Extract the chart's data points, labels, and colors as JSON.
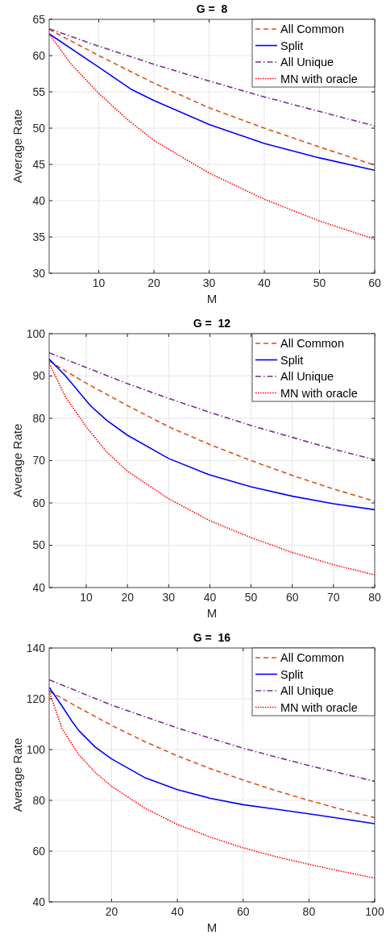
{
  "chart_data": [
    {
      "type": "line",
      "title": "G =  8",
      "xlabel": "M",
      "ylabel": "Average Rate",
      "xlim": [
        1,
        60
      ],
      "xticks": [
        10,
        20,
        30,
        40,
        50,
        60
      ],
      "ylim": [
        30,
        65
      ],
      "yticks": [
        30,
        35,
        40,
        45,
        50,
        55,
        60,
        65
      ],
      "grid": true,
      "legend": "top right",
      "series": [
        {
          "name": "All Common",
          "color": "#d95319",
          "line_style": "dashed",
          "x": [
            1,
            10,
            20,
            30,
            40,
            50,
            60
          ],
          "values": [
            63.6,
            60.0,
            56.2,
            52.8,
            50.0,
            47.4,
            44.9
          ]
        },
        {
          "name": "Split",
          "color": "#0000ff",
          "line_style": "solid",
          "x": [
            1,
            10,
            16,
            20,
            30,
            40,
            50,
            60
          ],
          "values": [
            63.0,
            58.4,
            55.3,
            53.8,
            50.5,
            47.9,
            45.9,
            44.2
          ]
        },
        {
          "name": "All Unique",
          "color": "#7e2f8e",
          "line_style": "dashdot",
          "x": [
            1,
            10,
            20,
            30,
            40,
            50,
            60
          ],
          "values": [
            63.7,
            61.3,
            58.8,
            56.5,
            54.3,
            52.3,
            50.3
          ]
        },
        {
          "name": "MN with oracle",
          "color": "#ff0000",
          "line_style": "dotted",
          "x": [
            1,
            5,
            10,
            15,
            20,
            30,
            40,
            50,
            60
          ],
          "values": [
            63.0,
            58.8,
            54.8,
            51.3,
            48.3,
            43.8,
            40.2,
            37.2,
            34.7
          ]
        }
      ]
    },
    {
      "type": "line",
      "title": "G =  12",
      "xlabel": "M",
      "ylabel": "Average Rate",
      "xlim": [
        1,
        80
      ],
      "xticks": [
        10,
        20,
        30,
        40,
        50,
        60,
        70,
        80
      ],
      "ylim": [
        40,
        100
      ],
      "yticks": [
        40,
        50,
        60,
        70,
        80,
        90,
        100
      ],
      "grid": true,
      "legend": "top right",
      "series": [
        {
          "name": "All Common",
          "color": "#d95319",
          "line_style": "dashed",
          "x": [
            1,
            10,
            20,
            30,
            40,
            50,
            60,
            70,
            80
          ],
          "values": [
            93.5,
            88.3,
            83,
            78,
            73.8,
            70,
            66.5,
            63.3,
            60.4
          ]
        },
        {
          "name": "Split",
          "color": "#0000ff",
          "line_style": "solid",
          "x": [
            1,
            5,
            11,
            15,
            20,
            30,
            40,
            50,
            60,
            70,
            80
          ],
          "values": [
            94,
            90,
            83,
            79.5,
            76,
            70.5,
            66.6,
            63.8,
            61.6,
            59.8,
            58.4
          ]
        },
        {
          "name": "All Unique",
          "color": "#7e2f8e",
          "line_style": "dashdot",
          "x": [
            1,
            10,
            20,
            30,
            40,
            50,
            60,
            70,
            80
          ],
          "values": [
            95.5,
            92,
            88.2,
            84.7,
            81.4,
            78.3,
            75.5,
            72.7,
            70.2
          ]
        },
        {
          "name": "MN with oracle",
          "color": "#ff0000",
          "line_style": "dotted",
          "x": [
            1,
            5,
            10,
            15,
            20,
            30,
            40,
            50,
            60,
            70,
            80
          ],
          "values": [
            93,
            85,
            78,
            72,
            67.5,
            61,
            55.8,
            51.8,
            48.3,
            45.4,
            43
          ]
        }
      ]
    },
    {
      "type": "line",
      "title": "G =  16",
      "xlabel": "M",
      "ylabel": "Average Rate",
      "xlim": [
        1,
        100
      ],
      "xticks": [
        20,
        40,
        60,
        80,
        100
      ],
      "ylim": [
        40,
        140
      ],
      "yticks": [
        40,
        60,
        80,
        100,
        120,
        140
      ],
      "grid": true,
      "legend": "top right",
      "series": [
        {
          "name": "All Common",
          "color": "#d95319",
          "line_style": "dashed",
          "x": [
            1,
            10,
            20,
            30,
            40,
            50,
            60,
            70,
            80,
            90,
            100
          ],
          "values": [
            123,
            116.5,
            109.5,
            103.2,
            97.5,
            92.5,
            88,
            83.8,
            80,
            76.4,
            73.2
          ]
        },
        {
          "name": "Split",
          "color": "#0000ff",
          "line_style": "solid",
          "x": [
            1,
            5,
            8,
            10,
            15,
            20,
            30,
            40,
            50,
            60,
            70,
            80,
            90,
            100
          ],
          "values": [
            124.5,
            117,
            111,
            107.5,
            101,
            96.3,
            89,
            84.2,
            80.8,
            78.3,
            76.5,
            74.7,
            72.8,
            70.8
          ]
        },
        {
          "name": "All Unique",
          "color": "#7e2f8e",
          "line_style": "dashdot",
          "x": [
            1,
            20,
            40,
            60,
            80,
            100
          ],
          "values": [
            127.5,
            117.5,
            108.5,
            100.5,
            93.7,
            87.5
          ]
        },
        {
          "name": "MN with oracle",
          "color": "#ff0000",
          "line_style": "dotted",
          "x": [
            1,
            5,
            10,
            15,
            20,
            30,
            40,
            50,
            60,
            70,
            80,
            90,
            100
          ],
          "values": [
            123,
            108,
            98,
            91,
            85.5,
            77,
            70.5,
            65.5,
            61.3,
            57.8,
            54.8,
            52,
            49.4
          ]
        }
      ]
    }
  ]
}
